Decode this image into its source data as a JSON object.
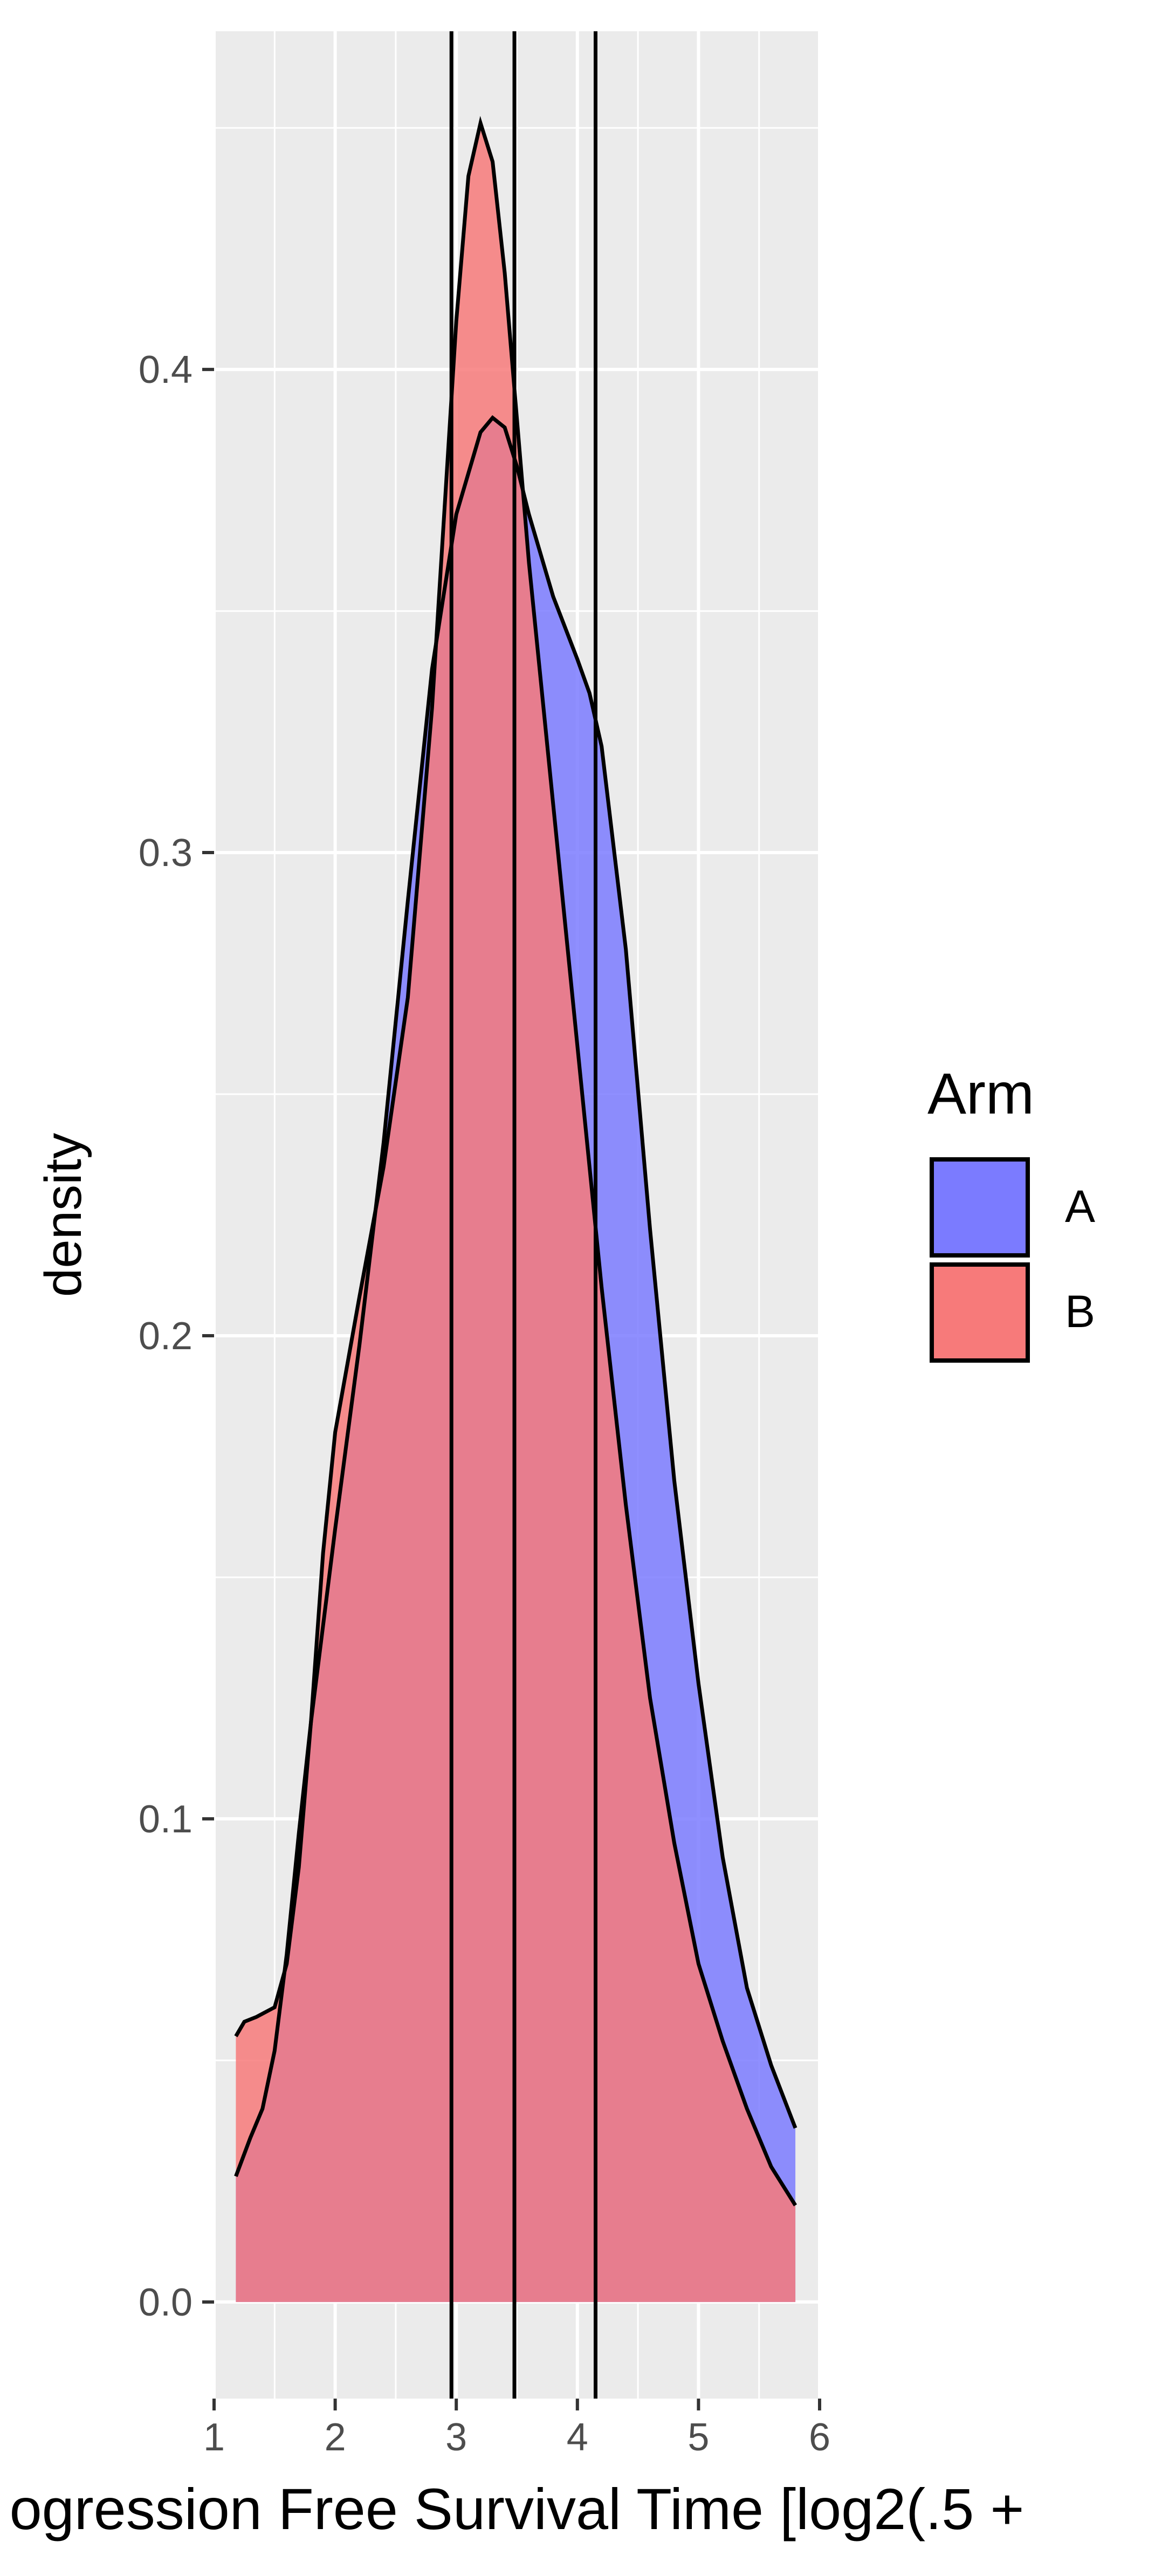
{
  "chart_data": {
    "type": "area",
    "subtype": "density",
    "xlabel": "ogression Free Survival Time [log2(.5 +",
    "ylabel": "density",
    "xlim": [
      1,
      6
    ],
    "ylim": [
      -0.02,
      0.47
    ],
    "x_ticks": [
      1,
      2,
      3,
      4,
      5,
      6
    ],
    "y_ticks": [
      0.0,
      0.1,
      0.2,
      0.3,
      0.4
    ],
    "y_tick_labels": [
      "0.0",
      "0.1",
      "0.2",
      "0.3",
      "0.4"
    ],
    "grid": true,
    "panel_background": "#ebebeb",
    "legend": {
      "title": "Arm",
      "position": "right",
      "entries": [
        {
          "label": "A",
          "color": "#7b7bff"
        },
        {
          "label": "B",
          "color": "#f77a7a"
        }
      ]
    },
    "vlines": [
      2.96,
      3.48,
      4.15
    ],
    "series": [
      {
        "name": "A",
        "color": "#7b7bff",
        "x": [
          1.18,
          1.3,
          1.4,
          1.5,
          1.6,
          1.7,
          1.8,
          1.9,
          2.0,
          2.2,
          2.4,
          2.6,
          2.8,
          3.0,
          3.2,
          3.3,
          3.4,
          3.5,
          3.6,
          3.8,
          4.0,
          4.1,
          4.2,
          4.4,
          4.6,
          4.8,
          5.0,
          5.2,
          5.4,
          5.6,
          5.8
        ],
        "y": [
          0.026,
          0.034,
          0.04,
          0.052,
          0.072,
          0.097,
          0.12,
          0.14,
          0.16,
          0.198,
          0.24,
          0.29,
          0.338,
          0.37,
          0.387,
          0.39,
          0.388,
          0.38,
          0.37,
          0.353,
          0.34,
          0.333,
          0.322,
          0.28,
          0.222,
          0.17,
          0.128,
          0.092,
          0.065,
          0.049,
          0.036
        ]
      },
      {
        "name": "B",
        "color": "#f77a7a",
        "x": [
          1.18,
          1.25,
          1.35,
          1.5,
          1.6,
          1.7,
          1.8,
          1.9,
          2.0,
          2.2,
          2.4,
          2.6,
          2.8,
          2.9,
          3.0,
          3.1,
          3.2,
          3.3,
          3.4,
          3.5,
          3.6,
          3.8,
          4.0,
          4.2,
          4.4,
          4.6,
          4.8,
          5.0,
          5.2,
          5.4,
          5.6,
          5.8
        ],
        "y": [
          0.055,
          0.058,
          0.059,
          0.061,
          0.07,
          0.09,
          0.12,
          0.155,
          0.18,
          0.208,
          0.235,
          0.27,
          0.33,
          0.37,
          0.41,
          0.44,
          0.451,
          0.443,
          0.42,
          0.39,
          0.36,
          0.31,
          0.26,
          0.21,
          0.165,
          0.125,
          0.095,
          0.07,
          0.054,
          0.04,
          0.028,
          0.02
        ]
      }
    ]
  }
}
